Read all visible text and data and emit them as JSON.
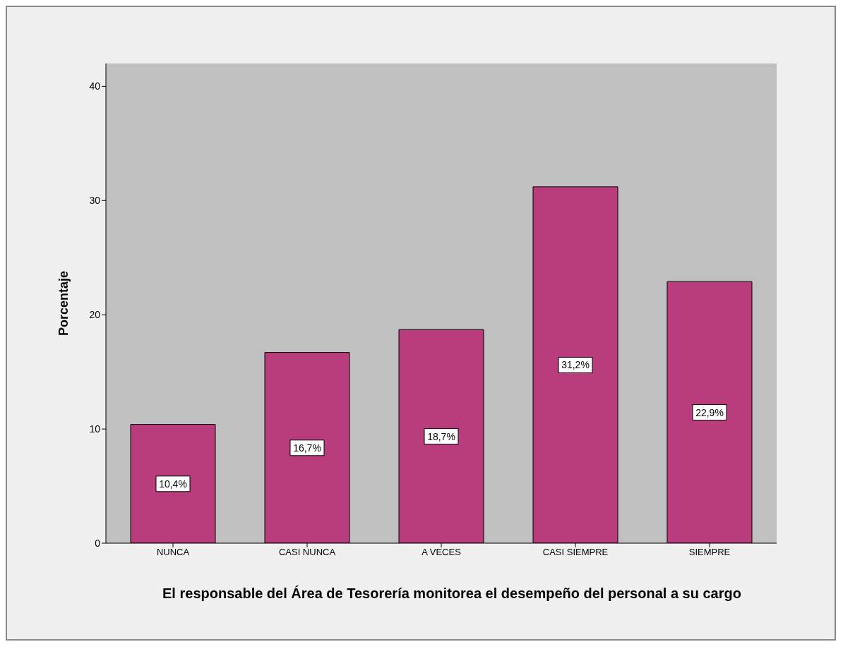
{
  "chart_data": {
    "type": "bar",
    "xlabel": "El responsable del Área de Tesorería monitorea el desempeño del personal a su cargo",
    "ylabel": "Porcentaje",
    "categories": [
      "NUNCA",
      "CASI NUNCA",
      "A VECES",
      "CASI SIEMPRE",
      "SIEMPRE"
    ],
    "values": [
      10.4,
      16.7,
      18.7,
      31.2,
      22.9
    ],
    "value_labels": [
      "10,4%",
      "16,7%",
      "18,7%",
      "31,2%",
      "22,9%"
    ],
    "color": "#b93c7c",
    "ylim": [
      0,
      42
    ],
    "yticks": [
      0,
      10,
      20,
      30,
      40
    ],
    "grid": false,
    "legend": false
  }
}
